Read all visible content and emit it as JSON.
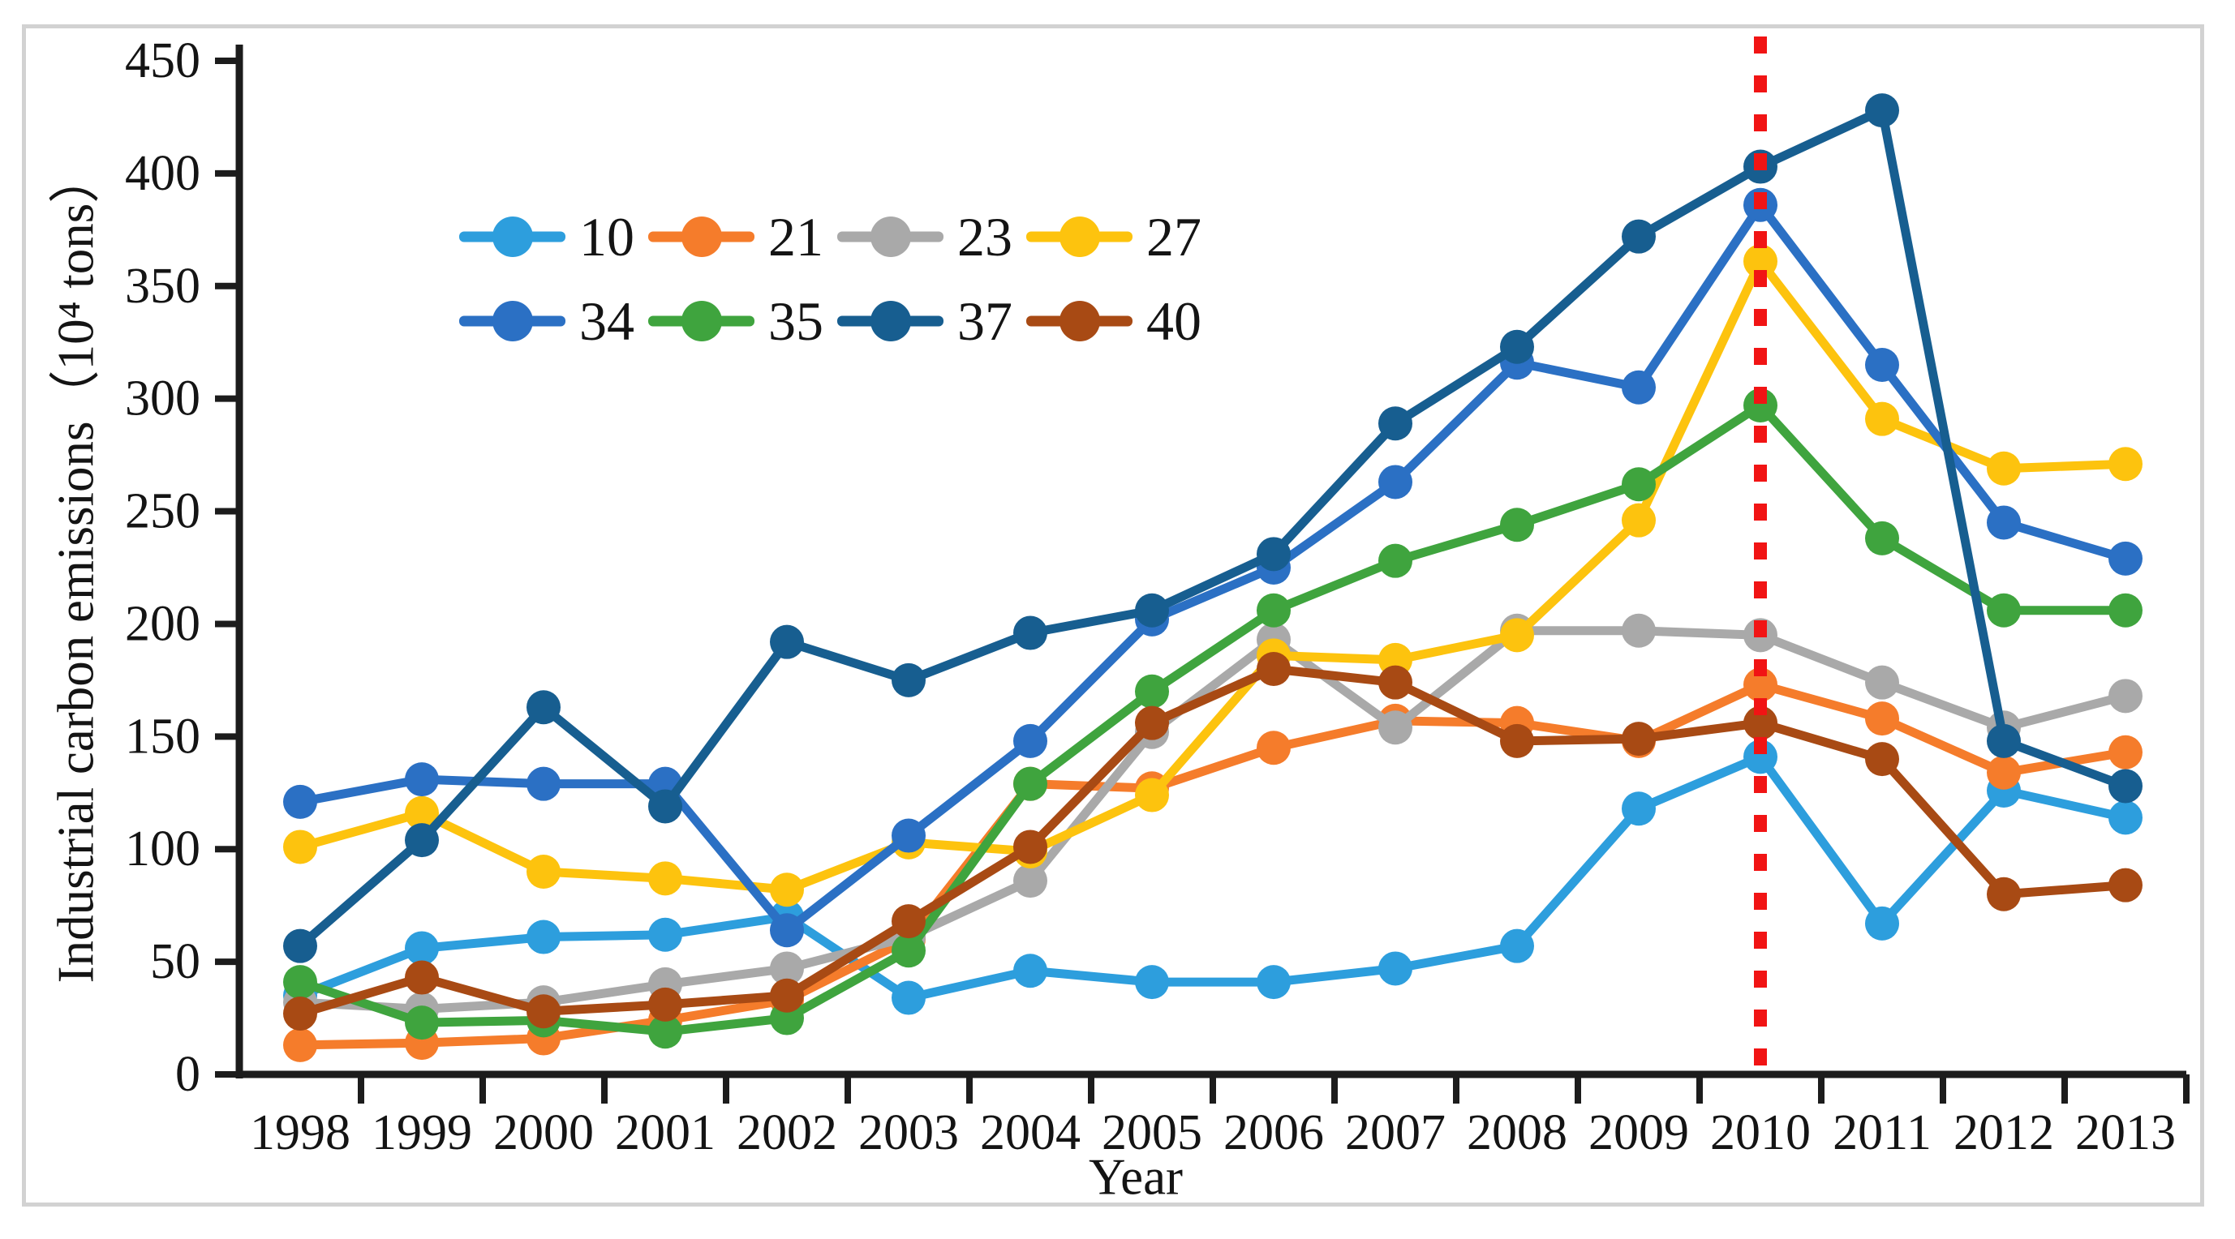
{
  "chart_data": {
    "type": "line",
    "title": "",
    "xlabel": "Year",
    "ylabel": "Industrial carbon emissions（10⁴ tons）",
    "categories": [
      1998,
      1999,
      2000,
      2001,
      2002,
      2003,
      2004,
      2005,
      2006,
      2007,
      2008,
      2009,
      2010,
      2011,
      2012,
      2013
    ],
    "ylim": [
      0,
      450
    ],
    "ytick_interval": 50,
    "yticks": [
      0,
      50,
      100,
      150,
      200,
      250,
      300,
      350,
      400,
      450
    ],
    "grid": false,
    "marker": "circle",
    "legend": {
      "position": "inside-top-left",
      "rows": [
        [
          "10",
          "21",
          "23",
          "27"
        ],
        [
          "34",
          "35",
          "37",
          "40"
        ]
      ]
    },
    "annotation": {
      "type": "vertical_dashed_line",
      "x": 2010,
      "color": "#f11414",
      "name": "red-dashed-divider"
    },
    "series": [
      {
        "name": "10",
        "color": "#2d9edd",
        "values": [
          35,
          56,
          61,
          62,
          70,
          34,
          46,
          41,
          41,
          47,
          57,
          118,
          141,
          67,
          126,
          114
        ]
      },
      {
        "name": "21",
        "color": "#f57c2b",
        "values": [
          13,
          14,
          16,
          24,
          33,
          60,
          129,
          127,
          145,
          157,
          156,
          148,
          173,
          158,
          134,
          143
        ]
      },
      {
        "name": "23",
        "color": "#a9a9a9",
        "values": [
          32,
          29,
          32,
          40,
          47,
          61,
          86,
          152,
          193,
          154,
          197,
          197,
          195,
          174,
          154,
          168
        ]
      },
      {
        "name": "27",
        "color": "#fdc30e",
        "values": [
          101,
          116,
          90,
          87,
          82,
          103,
          99,
          124,
          186,
          184,
          195,
          246,
          361,
          291,
          269,
          271
        ]
      },
      {
        "name": "34",
        "color": "#2b70c4",
        "values": [
          121,
          131,
          129,
          129,
          64,
          106,
          148,
          202,
          225,
          263,
          316,
          305,
          386,
          315,
          245,
          229
        ]
      },
      {
        "name": "35",
        "color": "#3fa43e",
        "values": [
          41,
          23,
          24,
          19,
          25,
          55,
          129,
          170,
          206,
          228,
          244,
          262,
          297,
          238,
          206,
          206
        ]
      },
      {
        "name": "37",
        "color": "#175e90",
        "values": [
          57,
          104,
          163,
          119,
          192,
          175,
          196,
          206,
          231,
          289,
          323,
          372,
          403,
          428,
          148,
          128
        ]
      },
      {
        "name": "40",
        "color": "#a84a14",
        "values": [
          27,
          43,
          28,
          31,
          35,
          68,
          101,
          156,
          180,
          174,
          148,
          149,
          156,
          140,
          80,
          84
        ]
      }
    ]
  }
}
